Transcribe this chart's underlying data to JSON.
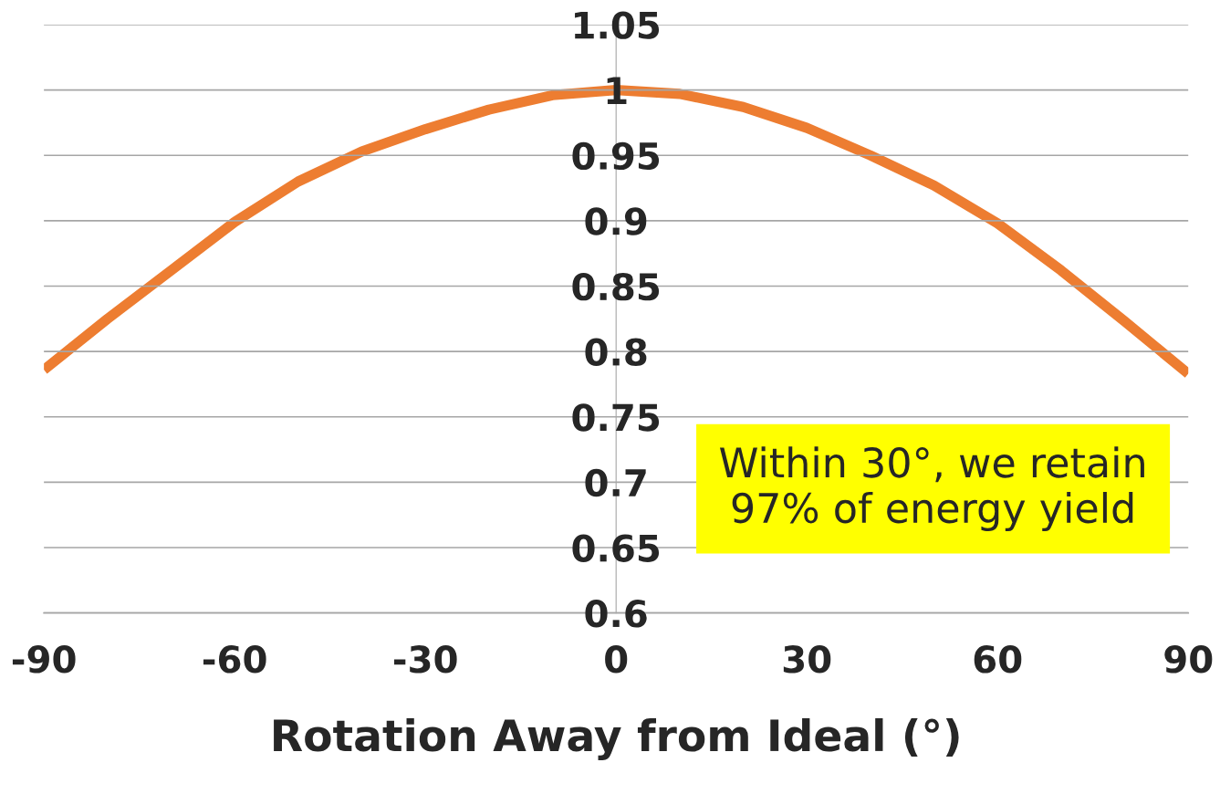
{
  "chart_data": {
    "type": "line",
    "xlabel": "Rotation Away from Ideal (°)",
    "x": [
      -90,
      -80,
      -70,
      -60,
      -50,
      -40,
      -30,
      -20,
      -10,
      0,
      10,
      20,
      30,
      40,
      50,
      60,
      70,
      80,
      90
    ],
    "series": [
      {
        "color": "#ed7d31",
        "values": [
          0.786,
          0.825,
          0.862,
          0.899,
          0.93,
          0.953,
          0.97,
          0.985,
          0.996,
          1.0,
          0.997,
          0.987,
          0.971,
          0.95,
          0.927,
          0.898,
          0.862,
          0.823,
          0.783
        ]
      }
    ],
    "xlim": [
      -90,
      90
    ],
    "xticks": [
      -90,
      -60,
      -30,
      0,
      30,
      60,
      90
    ],
    "ylim": [
      0.6,
      1.05
    ],
    "yticks": [
      0.6,
      0.65,
      0.7,
      0.75,
      0.8,
      0.85,
      0.9,
      0.95,
      1,
      1.05
    ],
    "grid": "y",
    "marker": "none",
    "line_style": "solid",
    "annotations": [
      "Within 30°, we retain\n97% of energy yield"
    ]
  }
}
